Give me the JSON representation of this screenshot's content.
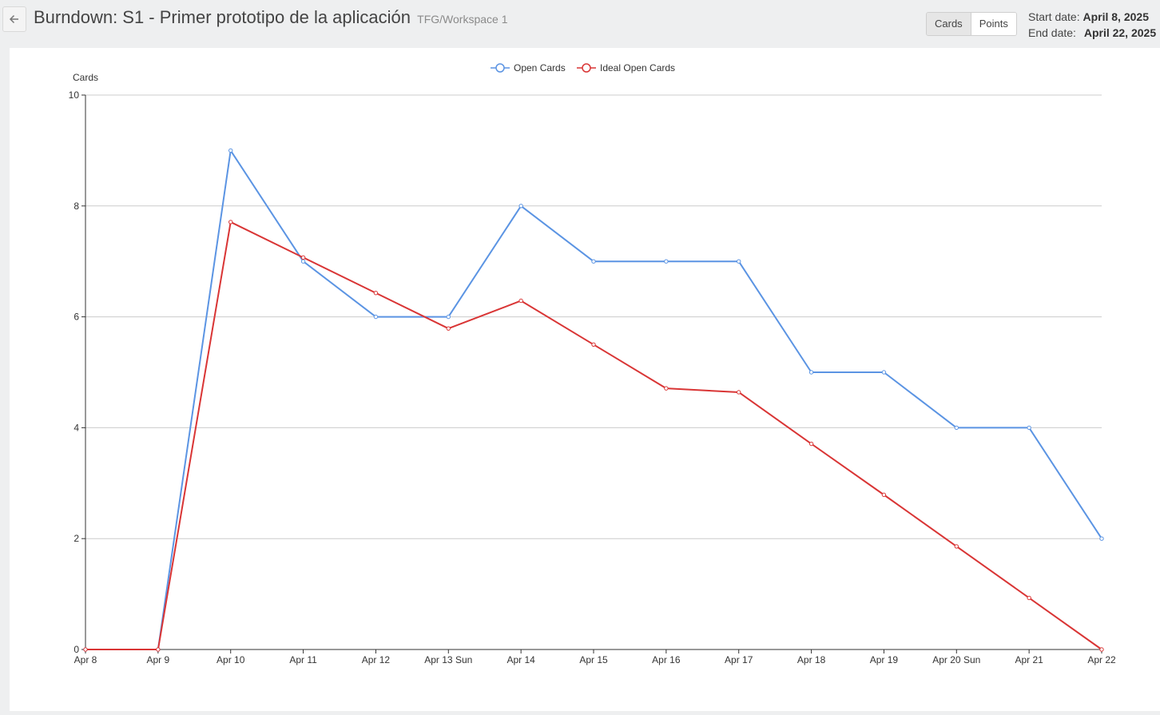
{
  "header": {
    "title": "Burndown: S1 - Primer prototipo de la aplicación",
    "subtitle": "TFG/Workspace 1",
    "back_icon": "arrow-left-icon",
    "toggle": {
      "cards_label": "Cards",
      "points_label": "Points",
      "active": "Cards"
    },
    "start_label": "Start date:",
    "start_value": "April 8, 2025",
    "end_label": "End date:",
    "end_value": "April 22, 2025"
  },
  "chart_data": {
    "type": "line",
    "ylabel": "Cards",
    "xlabel": "",
    "ylim": [
      0,
      10
    ],
    "yticks": [
      0,
      2,
      4,
      6,
      8,
      10
    ],
    "grid": true,
    "legend_position": "top-center",
    "categories": [
      "Apr 8",
      "Apr 9",
      "Apr 10",
      "Apr 11",
      "Apr 12",
      "Apr 13 Sun",
      "Apr 14",
      "Apr 15",
      "Apr 16",
      "Apr 17",
      "Apr 18",
      "Apr 19",
      "Apr 20 Sun",
      "Apr 21",
      "Apr 22"
    ],
    "series": [
      {
        "name": "Open Cards",
        "color": "#5b94e3",
        "values": [
          0,
          0,
          9,
          7,
          6,
          6,
          8,
          7,
          7,
          7,
          5,
          5,
          4,
          4,
          2
        ]
      },
      {
        "name": "Ideal Open Cards",
        "color": "#d93535",
        "values": [
          0,
          0,
          7.71,
          7.07,
          6.43,
          5.79,
          6.29,
          5.5,
          4.71,
          4.64,
          3.71,
          2.79,
          1.86,
          0.93,
          0
        ]
      }
    ]
  }
}
